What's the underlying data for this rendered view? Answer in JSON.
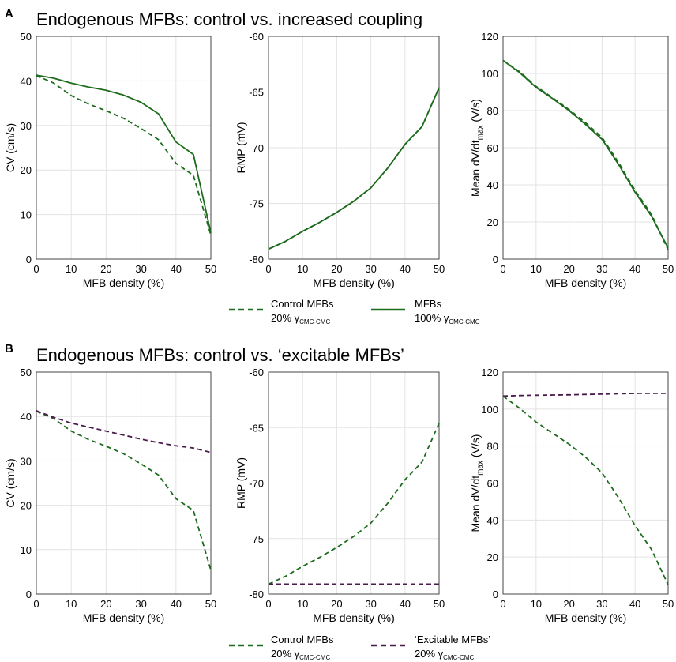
{
  "panels": [
    {
      "letter": "A",
      "title": "Endogenous MFBs: control vs. increased coupling"
    },
    {
      "letter": "B",
      "title": "Endogenous MFBs: control vs. ‘excitable MFBs’"
    }
  ],
  "legends": [
    {
      "items": [
        {
          "line1": "Control MFBs",
          "line2_prefix": "20% γ",
          "line2_sub": "CMC-CMC",
          "color": "#1d6b1d",
          "dash": "dashed"
        },
        {
          "line1": "MFBs",
          "line2_prefix": "100% γ",
          "line2_sub": "CMC-CMC",
          "color": "#1d6b1d",
          "dash": "solid"
        }
      ]
    },
    {
      "items": [
        {
          "line1": "Control MFBs",
          "line2_prefix": "20% γ",
          "line2_sub": "CMC-CMC",
          "color": "#1d6b1d",
          "dash": "dashed"
        },
        {
          "line1": "‘Excitable MFBs’",
          "line2_prefix": "20% γ",
          "line2_sub": "CMC-CMC",
          "color": "#4a1a4d",
          "dash": "dashed"
        }
      ]
    }
  ],
  "chart_data": [
    {
      "id": "A1",
      "panel": "A",
      "type": "line",
      "xlabel": "MFB density (%)",
      "ylabel": "CV (cm/s)",
      "xlim": [
        0,
        50
      ],
      "ylim": [
        0,
        50
      ],
      "xticks": [
        0,
        10,
        20,
        30,
        40,
        50
      ],
      "yticks": [
        0,
        10,
        20,
        30,
        40,
        50
      ],
      "x": [
        0,
        5,
        10,
        15,
        20,
        25,
        30,
        35,
        40,
        45,
        50
      ],
      "series": [
        {
          "name": "Control MFBs",
          "color": "#1d6b1d",
          "dash": "dashed",
          "values": [
            41.2,
            39.5,
            36.7,
            34.8,
            33.3,
            31.6,
            29.3,
            26.8,
            21.5,
            18.8,
            5.4
          ]
        },
        {
          "name": "MFBs 100%",
          "color": "#1d6b1d",
          "dash": "solid",
          "values": [
            41.3,
            40.6,
            39.5,
            38.6,
            37.9,
            36.8,
            35.2,
            32.6,
            26.3,
            23.5,
            5.9
          ]
        }
      ]
    },
    {
      "id": "A2",
      "panel": "A",
      "type": "line",
      "xlabel": "MFB density (%)",
      "ylabel": "RMP (mV)",
      "xlim": [
        0,
        50
      ],
      "ylim": [
        -80,
        -60
      ],
      "xticks": [
        0,
        10,
        20,
        30,
        40,
        50
      ],
      "yticks": [
        -80,
        -75,
        -70,
        -65,
        -60
      ],
      "x": [
        0,
        5,
        10,
        15,
        20,
        25,
        30,
        35,
        40,
        45,
        50
      ],
      "series": [
        {
          "name": "Control MFBs",
          "color": "#1d6b1d",
          "dash": "dashed",
          "values": [
            -79.1,
            -78.4,
            -77.5,
            -76.7,
            -75.8,
            -74.8,
            -73.6,
            -71.8,
            -69.7,
            -68.1,
            -64.6
          ]
        },
        {
          "name": "MFBs 100%",
          "color": "#1d6b1d",
          "dash": "solid",
          "values": [
            -79.1,
            -78.4,
            -77.5,
            -76.7,
            -75.8,
            -74.8,
            -73.6,
            -71.8,
            -69.7,
            -68.1,
            -64.6
          ]
        }
      ]
    },
    {
      "id": "A3",
      "panel": "A",
      "type": "line",
      "xlabel": "MFB density (%)",
      "ylabel": "Mean dV/dt",
      "ylabel_sub": "max",
      "ylabel_suffix": " (V/s)",
      "xlim": [
        0,
        50
      ],
      "ylim": [
        0,
        120
      ],
      "xticks": [
        0,
        10,
        20,
        30,
        40,
        50
      ],
      "yticks": [
        0,
        20,
        40,
        60,
        80,
        100,
        120
      ],
      "x": [
        0,
        5,
        10,
        15,
        20,
        25,
        30,
        35,
        40,
        45,
        50
      ],
      "series": [
        {
          "name": "Control MFBs",
          "color": "#1d6b1d",
          "dash": "dashed",
          "values": [
            107,
            101,
            93,
            87,
            80.5,
            73.5,
            65.5,
            52,
            37,
            24,
            5
          ]
        },
        {
          "name": "MFBs 100%",
          "color": "#1d6b1d",
          "dash": "solid",
          "values": [
            107,
            100.5,
            92.5,
            86.5,
            80,
            72.5,
            64.5,
            51,
            36,
            23,
            6
          ]
        }
      ]
    },
    {
      "id": "B1",
      "panel": "B",
      "type": "line",
      "xlabel": "MFB density (%)",
      "ylabel": "CV (cm/s)",
      "xlim": [
        0,
        50
      ],
      "ylim": [
        0,
        50
      ],
      "xticks": [
        0,
        10,
        20,
        30,
        40,
        50
      ],
      "yticks": [
        0,
        10,
        20,
        30,
        40,
        50
      ],
      "x": [
        0,
        5,
        10,
        15,
        20,
        25,
        30,
        35,
        40,
        45,
        50
      ],
      "series": [
        {
          "name": "Control MFBs",
          "color": "#1d6b1d",
          "dash": "dashed",
          "values": [
            41.2,
            39.5,
            36.7,
            34.8,
            33.3,
            31.6,
            29.3,
            26.8,
            21.5,
            18.8,
            5.4
          ]
        },
        {
          "name": "Excitable MFBs",
          "color": "#4a1a4d",
          "dash": "dashed",
          "values": [
            41.3,
            39.8,
            38.5,
            37.6,
            36.7,
            35.8,
            34.9,
            34.1,
            33.4,
            32.9,
            31.9
          ]
        }
      ]
    },
    {
      "id": "B2",
      "panel": "B",
      "type": "line",
      "xlabel": "MFB density (%)",
      "ylabel": "RMP (mV)",
      "xlim": [
        0,
        50
      ],
      "ylim": [
        -80,
        -60
      ],
      "xticks": [
        0,
        10,
        20,
        30,
        40,
        50
      ],
      "yticks": [
        -80,
        -75,
        -70,
        -65,
        -60
      ],
      "x": [
        0,
        5,
        10,
        15,
        20,
        25,
        30,
        35,
        40,
        45,
        50
      ],
      "series": [
        {
          "name": "Control MFBs",
          "color": "#1d6b1d",
          "dash": "dashed",
          "values": [
            -79.1,
            -78.4,
            -77.5,
            -76.7,
            -75.8,
            -74.8,
            -73.6,
            -71.8,
            -69.7,
            -68.1,
            -64.6
          ]
        },
        {
          "name": "Excitable MFBs",
          "color": "#4a1a4d",
          "dash": "dashed",
          "values": [
            -79.1,
            -79.1,
            -79.1,
            -79.1,
            -79.1,
            -79.1,
            -79.1,
            -79.1,
            -79.1,
            -79.1,
            -79.1
          ]
        }
      ]
    },
    {
      "id": "B3",
      "panel": "B",
      "type": "line",
      "xlabel": "MFB density (%)",
      "ylabel": "Mean dV/dt",
      "ylabel_sub": "max",
      "ylabel_suffix": " (V/s)",
      "xlim": [
        0,
        50
      ],
      "ylim": [
        0,
        120
      ],
      "xticks": [
        0,
        10,
        20,
        30,
        40,
        50
      ],
      "yticks": [
        0,
        20,
        40,
        60,
        80,
        100,
        120
      ],
      "x": [
        0,
        5,
        10,
        15,
        20,
        25,
        30,
        35,
        40,
        45,
        50
      ],
      "series": [
        {
          "name": "Control MFBs",
          "color": "#1d6b1d",
          "dash": "dashed",
          "values": [
            107,
            100.5,
            93,
            87,
            81,
            74,
            65.5,
            52,
            37,
            24,
            5
          ]
        },
        {
          "name": "Excitable MFBs",
          "color": "#4a1a4d",
          "dash": "dashed",
          "values": [
            107,
            107.3,
            107.5,
            107.6,
            107.7,
            107.9,
            108.1,
            108.3,
            108.5,
            108.5,
            108.5
          ]
        }
      ]
    }
  ]
}
